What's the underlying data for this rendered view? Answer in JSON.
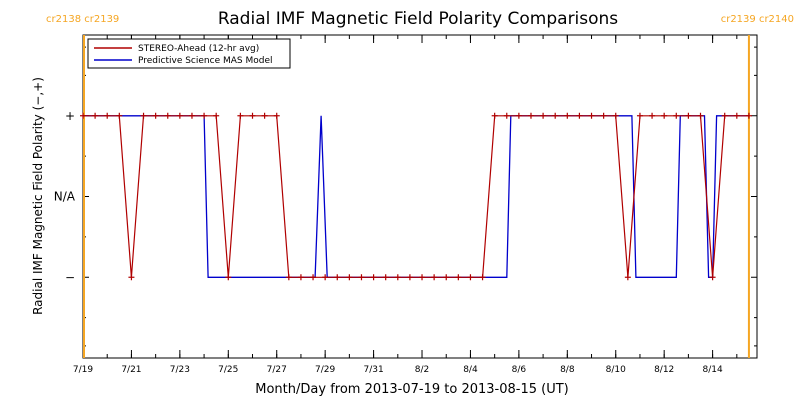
{
  "chart_data": {
    "type": "line",
    "title": "Radial IMF Magnetic Field Polarity Comparisons",
    "xlabel": "Month/Day from 2013-07-19 to 2013-08-15 (UT)",
    "ylabel": "Radial IMF Magnetic Field Polarity (−,+)",
    "x_ticks": [
      {
        "date": "2013-07-19",
        "label": "7/19"
      },
      {
        "date": "2013-07-21",
        "label": "7/21"
      },
      {
        "date": "2013-07-23",
        "label": "7/23"
      },
      {
        "date": "2013-07-25",
        "label": "7/25"
      },
      {
        "date": "2013-07-27",
        "label": "7/27"
      },
      {
        "date": "2013-07-29",
        "label": "7/29"
      },
      {
        "date": "2013-07-31",
        "label": "7/31"
      },
      {
        "date": "2013-08-02",
        "label": "8/2"
      },
      {
        "date": "2013-08-04",
        "label": "8/4"
      },
      {
        "date": "2013-08-06",
        "label": "8/6"
      },
      {
        "date": "2013-08-08",
        "label": "8/8"
      },
      {
        "date": "2013-08-10",
        "label": "8/10"
      },
      {
        "date": "2013-08-12",
        "label": "8/12"
      },
      {
        "date": "2013-08-14",
        "label": "8/14"
      }
    ],
    "y_ticks": [
      {
        "value": 1,
        "label": "+"
      },
      {
        "value": 0,
        "label": "N/A"
      },
      {
        "value": -1,
        "label": "−"
      }
    ],
    "xlim": [
      "2013-07-19T00:00",
      "2013-08-15T20:00"
    ],
    "ylim": [
      -2,
      2
    ],
    "carrington_markers": [
      {
        "date": "2013-07-19T00:00",
        "label": "cr2138 cr2139",
        "side": "left"
      },
      {
        "date": "2013-08-15T12:00",
        "label": "cr2139 cr2140",
        "side": "right"
      }
    ],
    "marker_color": "#f5a623",
    "legend_position": "top-left",
    "series": [
      {
        "name": "STEREO-Ahead (12-hr avg)",
        "color": "#b00000",
        "marker": "+",
        "x": [
          "2013-07-19T00:00",
          "2013-07-19T12:00",
          "2013-07-20T00:00",
          "2013-07-20T12:00",
          "2013-07-21T00:00",
          "2013-07-21T12:00",
          "2013-07-22T00:00",
          "2013-07-22T12:00",
          "2013-07-23T00:00",
          "2013-07-23T12:00",
          "2013-07-24T00:00",
          "2013-07-24T12:00",
          "2013-07-25T00:00",
          "2013-07-25T12:00",
          "2013-07-26T00:00",
          "2013-07-26T12:00",
          "2013-07-27T00:00",
          "2013-07-27T12:00",
          "2013-07-28T00:00",
          "2013-07-28T12:00",
          "2013-07-29T00:00",
          "2013-07-29T12:00",
          "2013-07-30T00:00",
          "2013-07-30T12:00",
          "2013-07-31T00:00",
          "2013-07-31T12:00",
          "2013-08-01T00:00",
          "2013-08-01T12:00",
          "2013-08-02T00:00",
          "2013-08-02T12:00",
          "2013-08-03T00:00",
          "2013-08-03T12:00",
          "2013-08-04T00:00",
          "2013-08-04T12:00",
          "2013-08-05T00:00",
          "2013-08-05T12:00",
          "2013-08-06T00:00",
          "2013-08-06T12:00",
          "2013-08-07T00:00",
          "2013-08-07T12:00",
          "2013-08-08T00:00",
          "2013-08-08T12:00",
          "2013-08-09T00:00",
          "2013-08-09T12:00",
          "2013-08-10T00:00",
          "2013-08-10T12:00",
          "2013-08-11T00:00",
          "2013-08-11T12:00",
          "2013-08-12T00:00",
          "2013-08-12T12:00",
          "2013-08-13T00:00",
          "2013-08-13T12:00",
          "2013-08-14T00:00",
          "2013-08-14T12:00",
          "2013-08-15T00:00",
          "2013-08-15T12:00"
        ],
        "y": [
          1,
          1,
          1,
          1,
          -1,
          1,
          1,
          1,
          1,
          1,
          1,
          1,
          -1,
          1,
          1,
          1,
          1,
          -1,
          -1,
          -1,
          -1,
          -1,
          -1,
          -1,
          -1,
          -1,
          -1,
          -1,
          -1,
          -1,
          -1,
          -1,
          -1,
          -1,
          1,
          1,
          1,
          1,
          1,
          1,
          1,
          1,
          1,
          1,
          1,
          -1,
          1,
          1,
          1,
          1,
          1,
          1,
          -1,
          1,
          1,
          1
        ]
      },
      {
        "name": "Predictive Science MAS Model",
        "color": "#0000cc",
        "step_points": [
          [
            "2013-07-19T00:00",
            1
          ],
          [
            "2013-07-24T00:00",
            1
          ],
          [
            "2013-07-24T04:00",
            -1
          ],
          [
            "2013-07-28T14:00",
            -1
          ],
          [
            "2013-07-28T20:00",
            1
          ],
          [
            "2013-07-29T02:00",
            -1
          ],
          [
            "2013-08-05T12:00",
            -1
          ],
          [
            "2013-08-05T16:00",
            1
          ],
          [
            "2013-08-10T16:00",
            1
          ],
          [
            "2013-08-10T20:00",
            -1
          ],
          [
            "2013-08-12T12:00",
            -1
          ],
          [
            "2013-08-12T16:00",
            1
          ],
          [
            "2013-08-13T16:00",
            1
          ],
          [
            "2013-08-13T20:00",
            -1
          ],
          [
            "2013-08-14T00:00",
            -1
          ],
          [
            "2013-08-14T04:00",
            1
          ],
          [
            "2013-08-15T12:00",
            1
          ]
        ]
      }
    ]
  }
}
